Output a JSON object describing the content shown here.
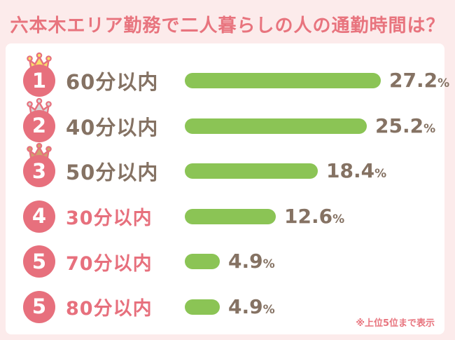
{
  "title": "六本木エリア勤務で二人暮らしの人の通勤時間は？",
  "footnote": "※上位5位まで表示",
  "colors": {
    "background": "#FCEBEB",
    "title_pink": "#E8747E",
    "badge_coral": "#E7707D",
    "bar_green": "#8BC455",
    "text_brown": "#857263",
    "crown": {
      "gold": "#F9E06A",
      "silver": "#D9D9D9",
      "bronze": "#CFA36E"
    }
  },
  "chart_data": {
    "type": "bar",
    "orientation": "horizontal",
    "title": "六本木エリア勤務で二人暮らしの人の通勤時間は？",
    "unit": "%",
    "ranks": [
      "1",
      "2",
      "3",
      "4",
      "5",
      "5"
    ],
    "categories": [
      "60分以内",
      "40分以内",
      "50分以内",
      "30分以内",
      "70分以内",
      "80分以内"
    ],
    "values": [
      27.2,
      25.2,
      18.4,
      12.6,
      4.9,
      4.9
    ],
    "crowns": [
      "gold",
      "silver",
      "bronze",
      null,
      null,
      null
    ],
    "xlim": [
      0,
      30
    ],
    "grid": false,
    "legend": false
  }
}
